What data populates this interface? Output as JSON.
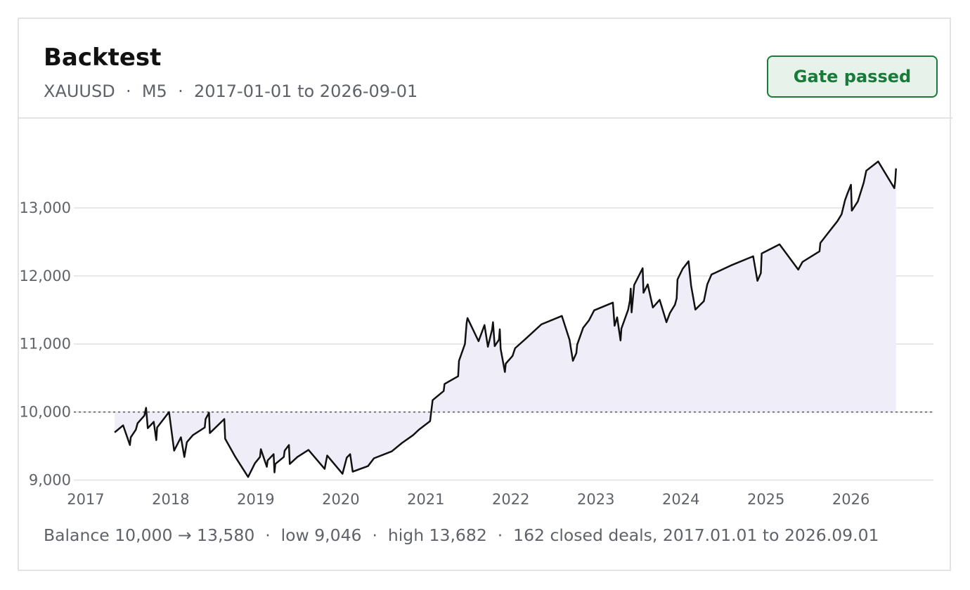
{
  "header": {
    "title": "Backtest",
    "subtitle": "XAUUSD  ·  M5  ·  2017-01-01 to 2026-09-01",
    "badge": "Gate passed"
  },
  "chart_data": {
    "type": "line",
    "x": [
      2017.34,
      2017.44,
      2017.52,
      2017.53,
      2017.59,
      2017.61,
      2017.69,
      2017.71,
      2017.73,
      2017.8,
      2017.83,
      2017.84,
      2017.98,
      2018.04,
      2018.12,
      2018.16,
      2018.19,
      2018.26,
      2018.4,
      2018.41,
      2018.45,
      2018.46,
      2018.63,
      2018.64,
      2018.76,
      2018.91,
      2018.99,
      2019.05,
      2019.06,
      2019.13,
      2019.14,
      2019.21,
      2019.22,
      2019.23,
      2019.33,
      2019.34,
      2019.39,
      2019.4,
      2019.49,
      2019.62,
      2019.81,
      2019.84,
      2020.02,
      2020.07,
      2020.11,
      2020.14,
      2020.32,
      2020.39,
      2020.6,
      2020.72,
      2020.85,
      2020.92,
      2021.05,
      2021.07,
      2021.08,
      2021.21,
      2021.22,
      2021.38,
      2021.39,
      2021.46,
      2021.48,
      2021.49,
      2021.62,
      2021.69,
      2021.73,
      2021.78,
      2021.79,
      2021.81,
      2021.86,
      2021.87,
      2021.88,
      2021.93,
      2021.94,
      2022.02,
      2022.05,
      2022.17,
      2022.36,
      2022.6,
      2022.69,
      2022.73,
      2022.77,
      2022.78,
      2022.85,
      2022.92,
      2022.98,
      2023.2,
      2023.22,
      2023.25,
      2023.29,
      2023.3,
      2023.38,
      2023.4,
      2023.41,
      2023.42,
      2023.45,
      2023.55,
      2023.56,
      2023.61,
      2023.67,
      2023.75,
      2023.83,
      2023.87,
      2023.93,
      2023.95,
      2023.96,
      2024.02,
      2024.09,
      2024.12,
      2024.17,
      2024.27,
      2024.31,
      2024.36,
      2024.59,
      2024.85,
      2024.9,
      2024.94,
      2024.95,
      2025.16,
      2025.38,
      2025.43,
      2025.63,
      2025.64,
      2025.73,
      2025.84,
      2025.89,
      2025.93,
      2025.96,
      2026.0,
      2026.01,
      2026.08,
      2026.15,
      2026.18,
      2026.32,
      2026.51,
      2026.52,
      2026.53
    ],
    "values": [
      9701,
      9804,
      9515,
      9629,
      9742,
      9835,
      9948,
      10062,
      9763,
      9856,
      9588,
      9773,
      10000,
      9433,
      9629,
      9340,
      9557,
      9660,
      9773,
      9897,
      9990,
      9691,
      9897,
      9608,
      9340,
      9046,
      9247,
      9340,
      9454,
      9196,
      9289,
      9381,
      9113,
      9237,
      9340,
      9433,
      9515,
      9237,
      9340,
      9443,
      9165,
      9361,
      9093,
      9330,
      9381,
      9124,
      9206,
      9320,
      9423,
      9546,
      9660,
      9742,
      9866,
      10072,
      10175,
      10309,
      10412,
      10526,
      10753,
      11000,
      11309,
      11381,
      11041,
      11278,
      10959,
      11216,
      11320,
      10969,
      11062,
      11216,
      10928,
      10588,
      10711,
      10825,
      10938,
      11072,
      11289,
      11412,
      11062,
      10753,
      10866,
      10990,
      11237,
      11350,
      11495,
      11608,
      11268,
      11392,
      11052,
      11227,
      11505,
      11639,
      11814,
      11464,
      11866,
      12113,
      11753,
      11876,
      11536,
      11649,
      11320,
      11454,
      11577,
      11670,
      11948,
      12103,
      12216,
      11856,
      11505,
      11629,
      11876,
      12021,
      12155,
      12289,
      11928,
      12041,
      12330,
      12464,
      12093,
      12206,
      12361,
      12485,
      12629,
      12804,
      12907,
      13113,
      13216,
      13340,
      12959,
      13093,
      13371,
      13546,
      13682,
      13289,
      13392,
      13580
    ],
    "color": "#111111",
    "fill": "#efedf8",
    "baseline": 10000,
    "xlim": [
      2016.86,
      2026.97
    ],
    "xticks": [
      2017,
      2018,
      2019,
      2020,
      2021,
      2022,
      2023,
      2024,
      2025,
      2026
    ],
    "ylim": [
      8830,
      14300
    ],
    "yticks": [
      {
        "value": 9000,
        "label": "9,000"
      },
      {
        "value": 10000,
        "label": "10,000"
      },
      {
        "value": 11000,
        "label": "11,000"
      },
      {
        "value": 12000,
        "label": "12,000"
      },
      {
        "value": 13000,
        "label": "13,000"
      }
    ],
    "grid": true
  },
  "footer": {
    "summary": "Balance 10,000 → 13,580  ·  low 9,046  ·  high 13,682  ·  162 closed deals, 2017.01.01 to 2026.09.01"
  }
}
